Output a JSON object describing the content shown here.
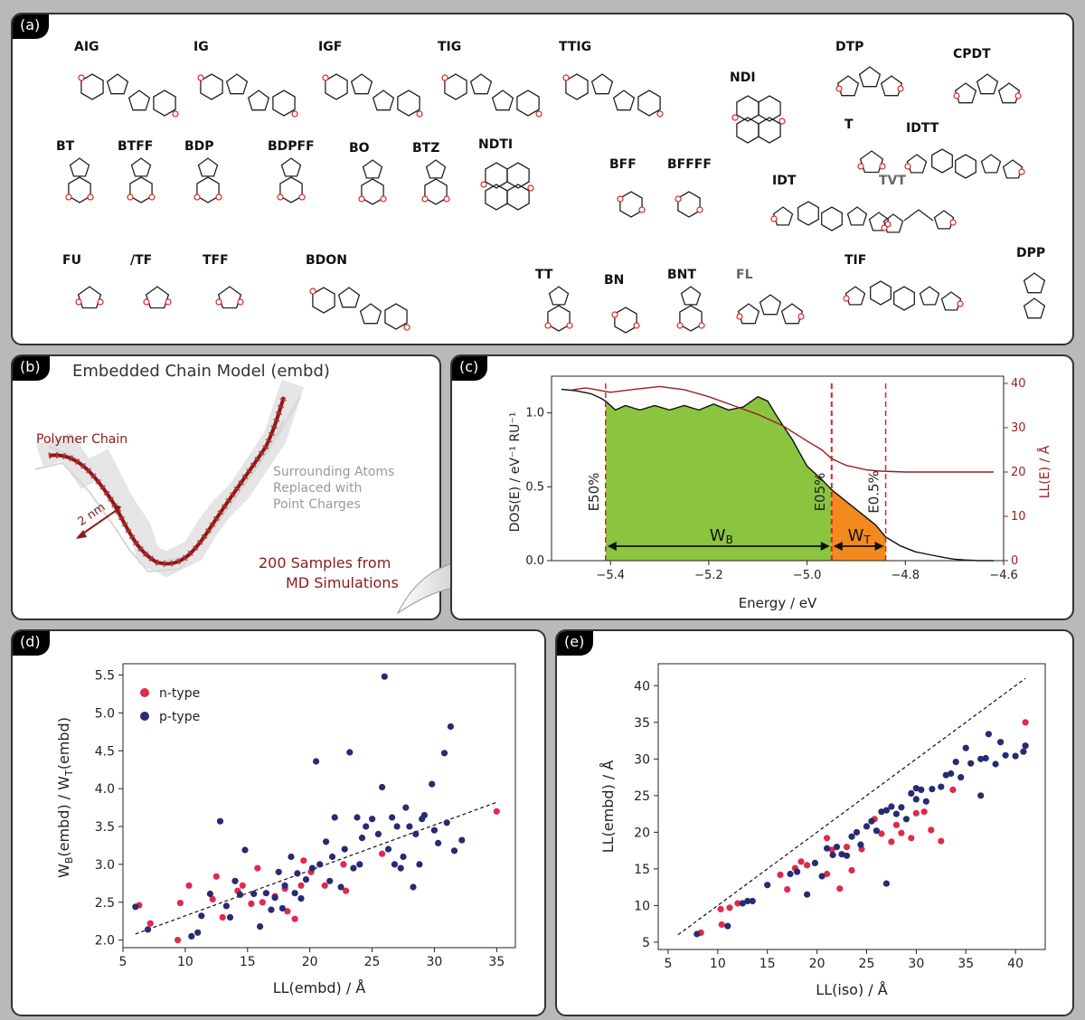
{
  "panels": {
    "a": {
      "tag": "(a)"
    },
    "b": {
      "tag": "(b)",
      "title": "Embedded Chain Model (embd)",
      "polymer_label": "Polymer Chain",
      "scale_label": "2 nm",
      "surround": [
        "Surrounding Atoms",
        "Replaced with",
        "Point Charges"
      ],
      "samples": [
        "200 Samples from",
        "MD Simulations"
      ]
    },
    "c": {
      "tag": "(c)"
    },
    "d": {
      "tag": "(d)"
    },
    "e": {
      "tag": "(e)"
    }
  },
  "molecules": [
    {
      "name": "AIG"
    },
    {
      "name": "IG"
    },
    {
      "name": "IGF"
    },
    {
      "name": "TIG"
    },
    {
      "name": "TTIG"
    },
    {
      "name": "NDI"
    },
    {
      "name": "DTP"
    },
    {
      "name": "CPDT"
    },
    {
      "name": "IDTT"
    },
    {
      "name": "T"
    },
    {
      "name": "BT"
    },
    {
      "name": "BTFF"
    },
    {
      "name": "BDP"
    },
    {
      "name": "BDPFF"
    },
    {
      "name": "BO"
    },
    {
      "name": "BTZ"
    },
    {
      "name": "NDTI"
    },
    {
      "name": "BFF"
    },
    {
      "name": "BFFFF"
    },
    {
      "name": "IDT"
    },
    {
      "name": "TVT",
      "gray": true
    },
    {
      "name": "DPP"
    },
    {
      "name": "FU"
    },
    {
      "name": "/TF"
    },
    {
      "name": "TFF"
    },
    {
      "name": "BDON"
    },
    {
      "name": "TT"
    },
    {
      "name": "BN"
    },
    {
      "name": "BNT"
    },
    {
      "name": "FL",
      "gray": true
    },
    {
      "name": "TIF"
    }
  ],
  "chart_data": [
    {
      "id": "c",
      "type": "area",
      "xlabel": "Energy / eV",
      "ylabel": "DOS(E) / eV⁻¹ RU⁻¹",
      "y2label": "LL(E) / Å",
      "xlim": [
        -5.52,
        -4.6
      ],
      "ylim": [
        0,
        1.2
      ],
      "y2lim": [
        0,
        40
      ],
      "xticks": [
        "-5.4",
        "-5.2",
        "-5.0",
        "-4.8",
        "-4.6"
      ],
      "yticks": [
        "0.0",
        "0.5",
        "1.0"
      ],
      "y2ticks": [
        "0",
        "10",
        "20",
        "30",
        "40"
      ],
      "dos": {
        "x": [
          -5.5,
          -5.47,
          -5.44,
          -5.42,
          -5.41,
          -5.39,
          -5.37,
          -5.34,
          -5.31,
          -5.28,
          -5.25,
          -5.22,
          -5.19,
          -5.16,
          -5.13,
          -5.1,
          -5.08,
          -5.06,
          -5.03,
          -5.0,
          -4.97,
          -4.95,
          -4.92,
          -4.89,
          -4.86,
          -4.84,
          -4.81,
          -4.78,
          -4.75,
          -4.72,
          -4.7,
          -4.68,
          -4.65,
          -4.62
        ],
        "y": [
          1.16,
          1.15,
          1.13,
          1.1,
          1.08,
          1.02,
          1.05,
          1.02,
          1.05,
          1.02,
          1.05,
          1.02,
          1.06,
          1.02,
          1.04,
          1.11,
          1.08,
          0.97,
          0.82,
          0.64,
          0.55,
          0.48,
          0.4,
          0.32,
          0.24,
          0.16,
          0.1,
          0.06,
          0.04,
          0.02,
          0.01,
          0.005,
          0.0,
          0.0
        ]
      },
      "ll": {
        "x": [
          -5.48,
          -5.45,
          -5.4,
          -5.35,
          -5.3,
          -5.25,
          -5.2,
          -5.15,
          -5.1,
          -5.05,
          -5.0,
          -4.97,
          -4.95,
          -4.92,
          -4.9,
          -4.88,
          -4.85,
          -4.8,
          -4.75,
          -4.7,
          -4.62
        ],
        "y": [
          38.5,
          39,
          38,
          38.7,
          39.3,
          38.6,
          37,
          35,
          33,
          30.5,
          27,
          25,
          23,
          21.5,
          21,
          20.5,
          20.2,
          20,
          20,
          20,
          20
        ]
      },
      "markers": [
        {
          "label": "E50%",
          "x": -5.41
        },
        {
          "label": "E05%",
          "x": -4.95
        },
        {
          "label": "E0.5%",
          "x": -4.84
        }
      ],
      "band_labels": {
        "wb": "W",
        "wb_sub": "B",
        "wt": "W",
        "wt_sub": "T"
      },
      "colors": {
        "green": "#8bc43f",
        "orange": "#f28a1e",
        "ll": "#9c1d1d",
        "marker": "#e02020"
      }
    },
    {
      "id": "d",
      "type": "scatter",
      "xlabel": "LL(embd) / Å",
      "ylabel": "W_B(embd) / W_T(embd)",
      "xlim": [
        5,
        36.5
      ],
      "ylim": [
        1.9,
        5.65
      ],
      "xticks": [
        5,
        10,
        15,
        20,
        25,
        30,
        35
      ],
      "yticks": [
        "2.0",
        "2.5",
        "3.0",
        "3.5",
        "4.0",
        "4.5",
        "5.0",
        "5.5"
      ],
      "legend": [
        "n-type",
        "p-type"
      ],
      "fit": {
        "x": [
          6,
          35
        ],
        "y": [
          2.08,
          3.82
        ]
      },
      "series": [
        {
          "name": "n-type",
          "color": "#e0294b",
          "points": [
            [
              6.3,
              2.46
            ],
            [
              7.2,
              2.22
            ],
            [
              9.4,
              2.0
            ],
            [
              9.6,
              2.49
            ],
            [
              10.3,
              2.72
            ],
            [
              12.2,
              2.54
            ],
            [
              12.5,
              2.84
            ],
            [
              14.2,
              2.65
            ],
            [
              14.6,
              2.72
            ],
            [
              15.3,
              2.48
            ],
            [
              15.8,
              2.95
            ],
            [
              16.2,
              2.5
            ],
            [
              17.2,
              2.58
            ],
            [
              18.0,
              2.68
            ],
            [
              18.2,
              2.38
            ],
            [
              18.8,
              2.28
            ],
            [
              19.3,
              2.72
            ],
            [
              20.1,
              2.9
            ],
            [
              21.2,
              2.72
            ],
            [
              22.7,
              3.0
            ],
            [
              22.9,
              2.65
            ],
            [
              25.8,
              3.14
            ],
            [
              35.0,
              3.7
            ],
            [
              13.0,
              2.3
            ],
            [
              19.5,
              3.05
            ]
          ]
        },
        {
          "name": "p-type",
          "color": "#262b73",
          "points": [
            [
              6.0,
              2.44
            ],
            [
              7.0,
              2.14
            ],
            [
              10.5,
              2.05
            ],
            [
              11.0,
              2.1
            ],
            [
              11.3,
              2.32
            ],
            [
              12.0,
              2.61
            ],
            [
              12.8,
              3.57
            ],
            [
              13.3,
              2.45
            ],
            [
              13.6,
              2.3
            ],
            [
              14.0,
              2.78
            ],
            [
              14.4,
              2.6
            ],
            [
              14.8,
              3.19
            ],
            [
              15.5,
              2.61
            ],
            [
              16.0,
              2.18
            ],
            [
              16.5,
              2.62
            ],
            [
              16.9,
              2.4
            ],
            [
              17.2,
              2.56
            ],
            [
              17.5,
              2.9
            ],
            [
              17.8,
              2.42
            ],
            [
              18.0,
              2.72
            ],
            [
              18.5,
              3.1
            ],
            [
              18.8,
              2.62
            ],
            [
              19.0,
              2.88
            ],
            [
              19.3,
              2.55
            ],
            [
              19.7,
              2.8
            ],
            [
              20.2,
              2.95
            ],
            [
              20.5,
              4.36
            ],
            [
              20.8,
              3.0
            ],
            [
              21.3,
              3.3
            ],
            [
              21.6,
              2.78
            ],
            [
              22.0,
              3.62
            ],
            [
              22.5,
              2.7
            ],
            [
              22.8,
              3.2
            ],
            [
              23.2,
              4.48
            ],
            [
              23.8,
              3.62
            ],
            [
              24.2,
              3.35
            ],
            [
              24.5,
              3.5
            ],
            [
              25.0,
              3.6
            ],
            [
              25.5,
              3.4
            ],
            [
              25.8,
              4.02
            ],
            [
              26.0,
              5.48
            ],
            [
              26.3,
              3.2
            ],
            [
              26.6,
              3.62
            ],
            [
              27.0,
              3.5
            ],
            [
              27.3,
              2.95
            ],
            [
              27.7,
              3.75
            ],
            [
              28.0,
              3.5
            ],
            [
              28.3,
              2.7
            ],
            [
              28.5,
              3.4
            ],
            [
              28.8,
              3.0
            ],
            [
              29.2,
              3.65
            ],
            [
              29.8,
              4.06
            ],
            [
              30.3,
              3.28
            ],
            [
              30.8,
              4.47
            ],
            [
              31.0,
              3.55
            ],
            [
              31.3,
              4.82
            ],
            [
              31.6,
              3.18
            ],
            [
              32.2,
              3.32
            ],
            [
              24.0,
              3.0
            ],
            [
              27.5,
              3.1
            ],
            [
              29.0,
              3.6
            ],
            [
              23.5,
              2.95
            ],
            [
              21.8,
              3.1
            ],
            [
              26.8,
              3.0
            ],
            [
              30.0,
              3.45
            ]
          ]
        }
      ]
    },
    {
      "id": "e",
      "type": "scatter",
      "xlabel": "LL(iso) / Å",
      "ylabel": "LL(embd) / Å",
      "xlim": [
        4,
        43
      ],
      "ylim": [
        4,
        43
      ],
      "xticks": [
        5,
        10,
        15,
        20,
        25,
        30,
        35,
        40
      ],
      "yticks": [
        5,
        10,
        15,
        20,
        25,
        30,
        35,
        40
      ],
      "fit": {
        "x": [
          6,
          41
        ],
        "y": [
          6,
          41
        ]
      },
      "series": [
        {
          "name": "n-type",
          "color": "#e0294b",
          "points": [
            [
              8.3,
              6.3
            ],
            [
              10.3,
              9.5
            ],
            [
              10.4,
              7.4
            ],
            [
              11.2,
              9.7
            ],
            [
              12.0,
              10.3
            ],
            [
              16.3,
              14.2
            ],
            [
              17.0,
              12.2
            ],
            [
              17.8,
              15.1
            ],
            [
              18.4,
              16.0
            ],
            [
              19.0,
              15.5
            ],
            [
              21.0,
              19.2
            ],
            [
              21.0,
              14.3
            ],
            [
              21.5,
              17.6
            ],
            [
              22.3,
              12.3
            ],
            [
              23.5,
              14.8
            ],
            [
              24.5,
              17.7
            ],
            [
              25.8,
              21.8
            ],
            [
              26.5,
              19.8
            ],
            [
              27.5,
              18.7
            ],
            [
              28.5,
              19.9
            ],
            [
              29.5,
              19.2
            ],
            [
              30.0,
              22.6
            ],
            [
              30.8,
              22.8
            ],
            [
              31.5,
              20.3
            ],
            [
              32.5,
              18.8
            ],
            [
              33.7,
              25.8
            ],
            [
              41.0,
              35.0
            ],
            [
              23.0,
              18.0
            ],
            [
              28.0,
              21.0
            ]
          ]
        },
        {
          "name": "p-type",
          "color": "#262b73",
          "points": [
            [
              7.9,
              6.1
            ],
            [
              11.0,
              7.2
            ],
            [
              12.5,
              10.3
            ],
            [
              13.0,
              10.6
            ],
            [
              13.5,
              10.6
            ],
            [
              15.0,
              12.8
            ],
            [
              17.3,
              14.3
            ],
            [
              18.0,
              14.6
            ],
            [
              19.0,
              11.5
            ],
            [
              19.8,
              15.8
            ],
            [
              20.5,
              14.0
            ],
            [
              21.0,
              17.8
            ],
            [
              21.6,
              16.9
            ],
            [
              22.0,
              18.0
            ],
            [
              22.5,
              17.0
            ],
            [
              23.0,
              16.8
            ],
            [
              23.5,
              19.4
            ],
            [
              24.0,
              20.0
            ],
            [
              24.4,
              18.3
            ],
            [
              25.0,
              20.8
            ],
            [
              25.5,
              21.5
            ],
            [
              26.0,
              20.2
            ],
            [
              26.5,
              22.8
            ],
            [
              27.0,
              23.0
            ],
            [
              27.5,
              23.5
            ],
            [
              28.0,
              22.5
            ],
            [
              28.5,
              23.4
            ],
            [
              29.0,
              21.8
            ],
            [
              29.5,
              25.3
            ],
            [
              30.0,
              26.0
            ],
            [
              30.5,
              25.8
            ],
            [
              31.0,
              24.2
            ],
            [
              31.6,
              25.9
            ],
            [
              32.5,
              26.2
            ],
            [
              33.0,
              27.8
            ],
            [
              33.5,
              28.0
            ],
            [
              34.0,
              29.6
            ],
            [
              34.5,
              27.5
            ],
            [
              35.0,
              31.5
            ],
            [
              35.5,
              29.4
            ],
            [
              36.5,
              25.0
            ],
            [
              37.0,
              30.1
            ],
            [
              37.3,
              33.4
            ],
            [
              38.0,
              29.3
            ],
            [
              38.5,
              32.3
            ],
            [
              39.0,
              30.5
            ],
            [
              40.0,
              30.4
            ],
            [
              40.8,
              31.0
            ],
            [
              41.0,
              31.8
            ],
            [
              27.0,
              13.0
            ],
            [
              30.0,
              24.5
            ],
            [
              36.5,
              30.0
            ]
          ]
        }
      ]
    }
  ]
}
